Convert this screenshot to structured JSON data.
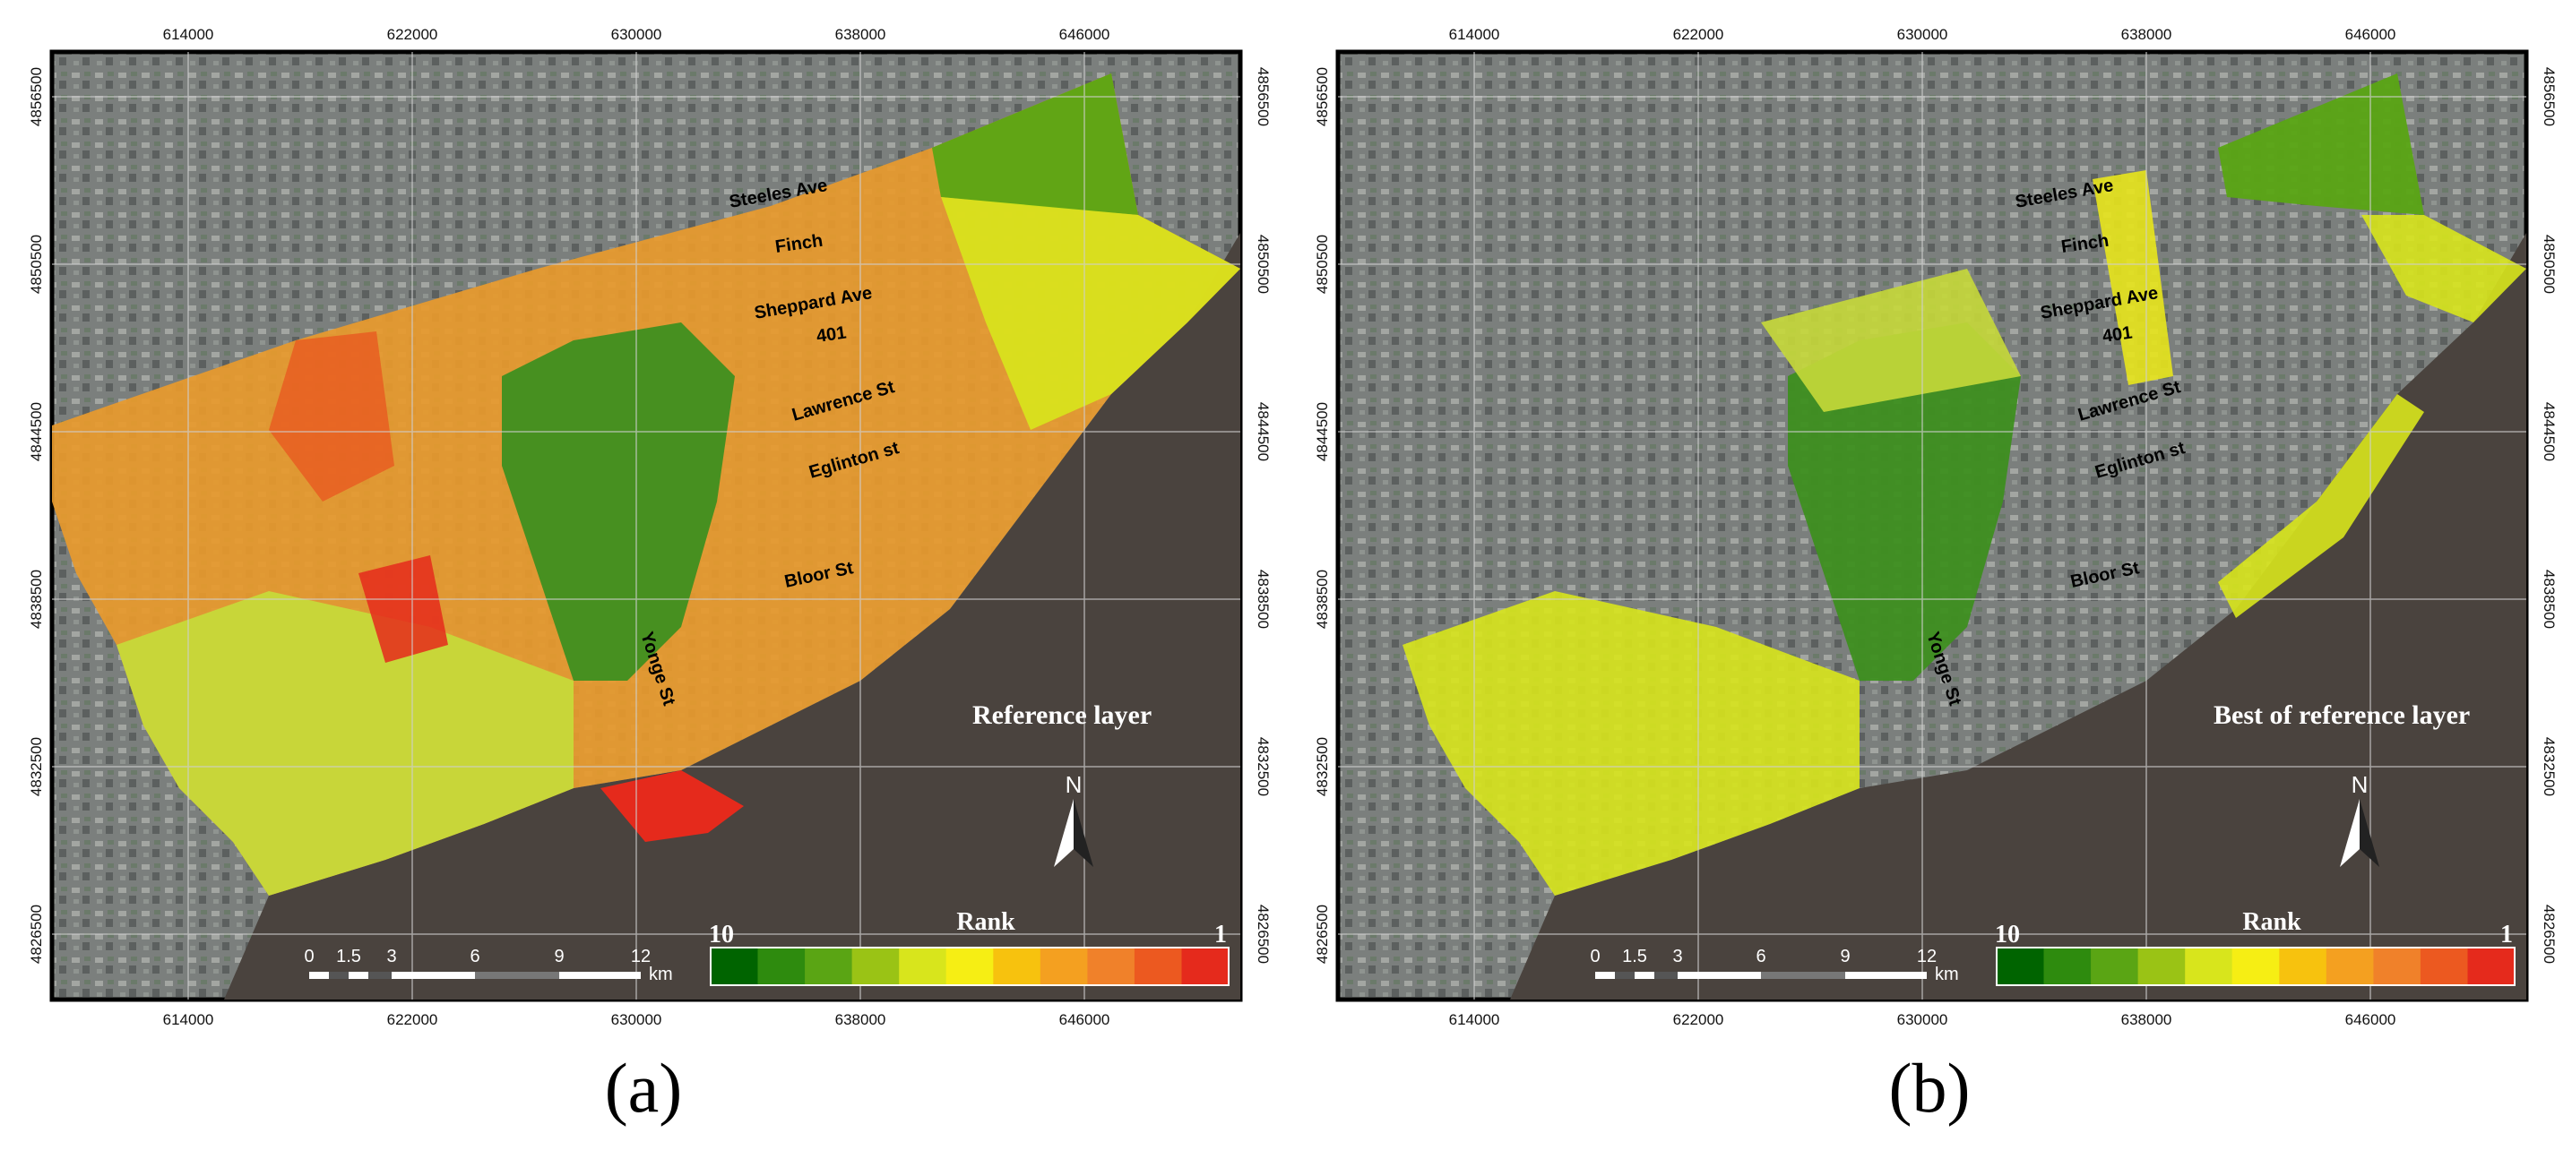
{
  "panels": [
    {
      "id": "a",
      "caption": "(a)",
      "layer_title": "Reference layer",
      "coverage": "full"
    },
    {
      "id": "b",
      "caption": "(b)",
      "layer_title": "Best of reference layer",
      "coverage": "partial"
    }
  ],
  "x_ticks": [
    "614000",
    "622000",
    "630000",
    "638000",
    "646000"
  ],
  "y_ticks": [
    "4856500",
    "4850500",
    "4844500",
    "4838500",
    "4832500",
    "4826500"
  ],
  "road_labels": {
    "steeles": "Steeles Ave",
    "finch": "Finch",
    "sheppard": "Sheppard Ave",
    "h401": "401",
    "lawrence": "Lawrence St",
    "eglinton": "Eglinton st",
    "bloor": "Bloor St",
    "yonge": "Yonge St"
  },
  "north_label": "N",
  "legend": {
    "title": "Rank",
    "high_label": "10",
    "low_label": "1",
    "colors": [
      "#006400",
      "#2e8b0e",
      "#5aa514",
      "#9ac315",
      "#d8e51c",
      "#f6ee14",
      "#f7c20e",
      "#f4a020",
      "#f0812a",
      "#ec5920",
      "#e52a1c"
    ]
  },
  "scale_bar": {
    "labels": [
      "0",
      "1.5",
      "3",
      "6",
      "9",
      "12"
    ],
    "unit": "km"
  }
}
